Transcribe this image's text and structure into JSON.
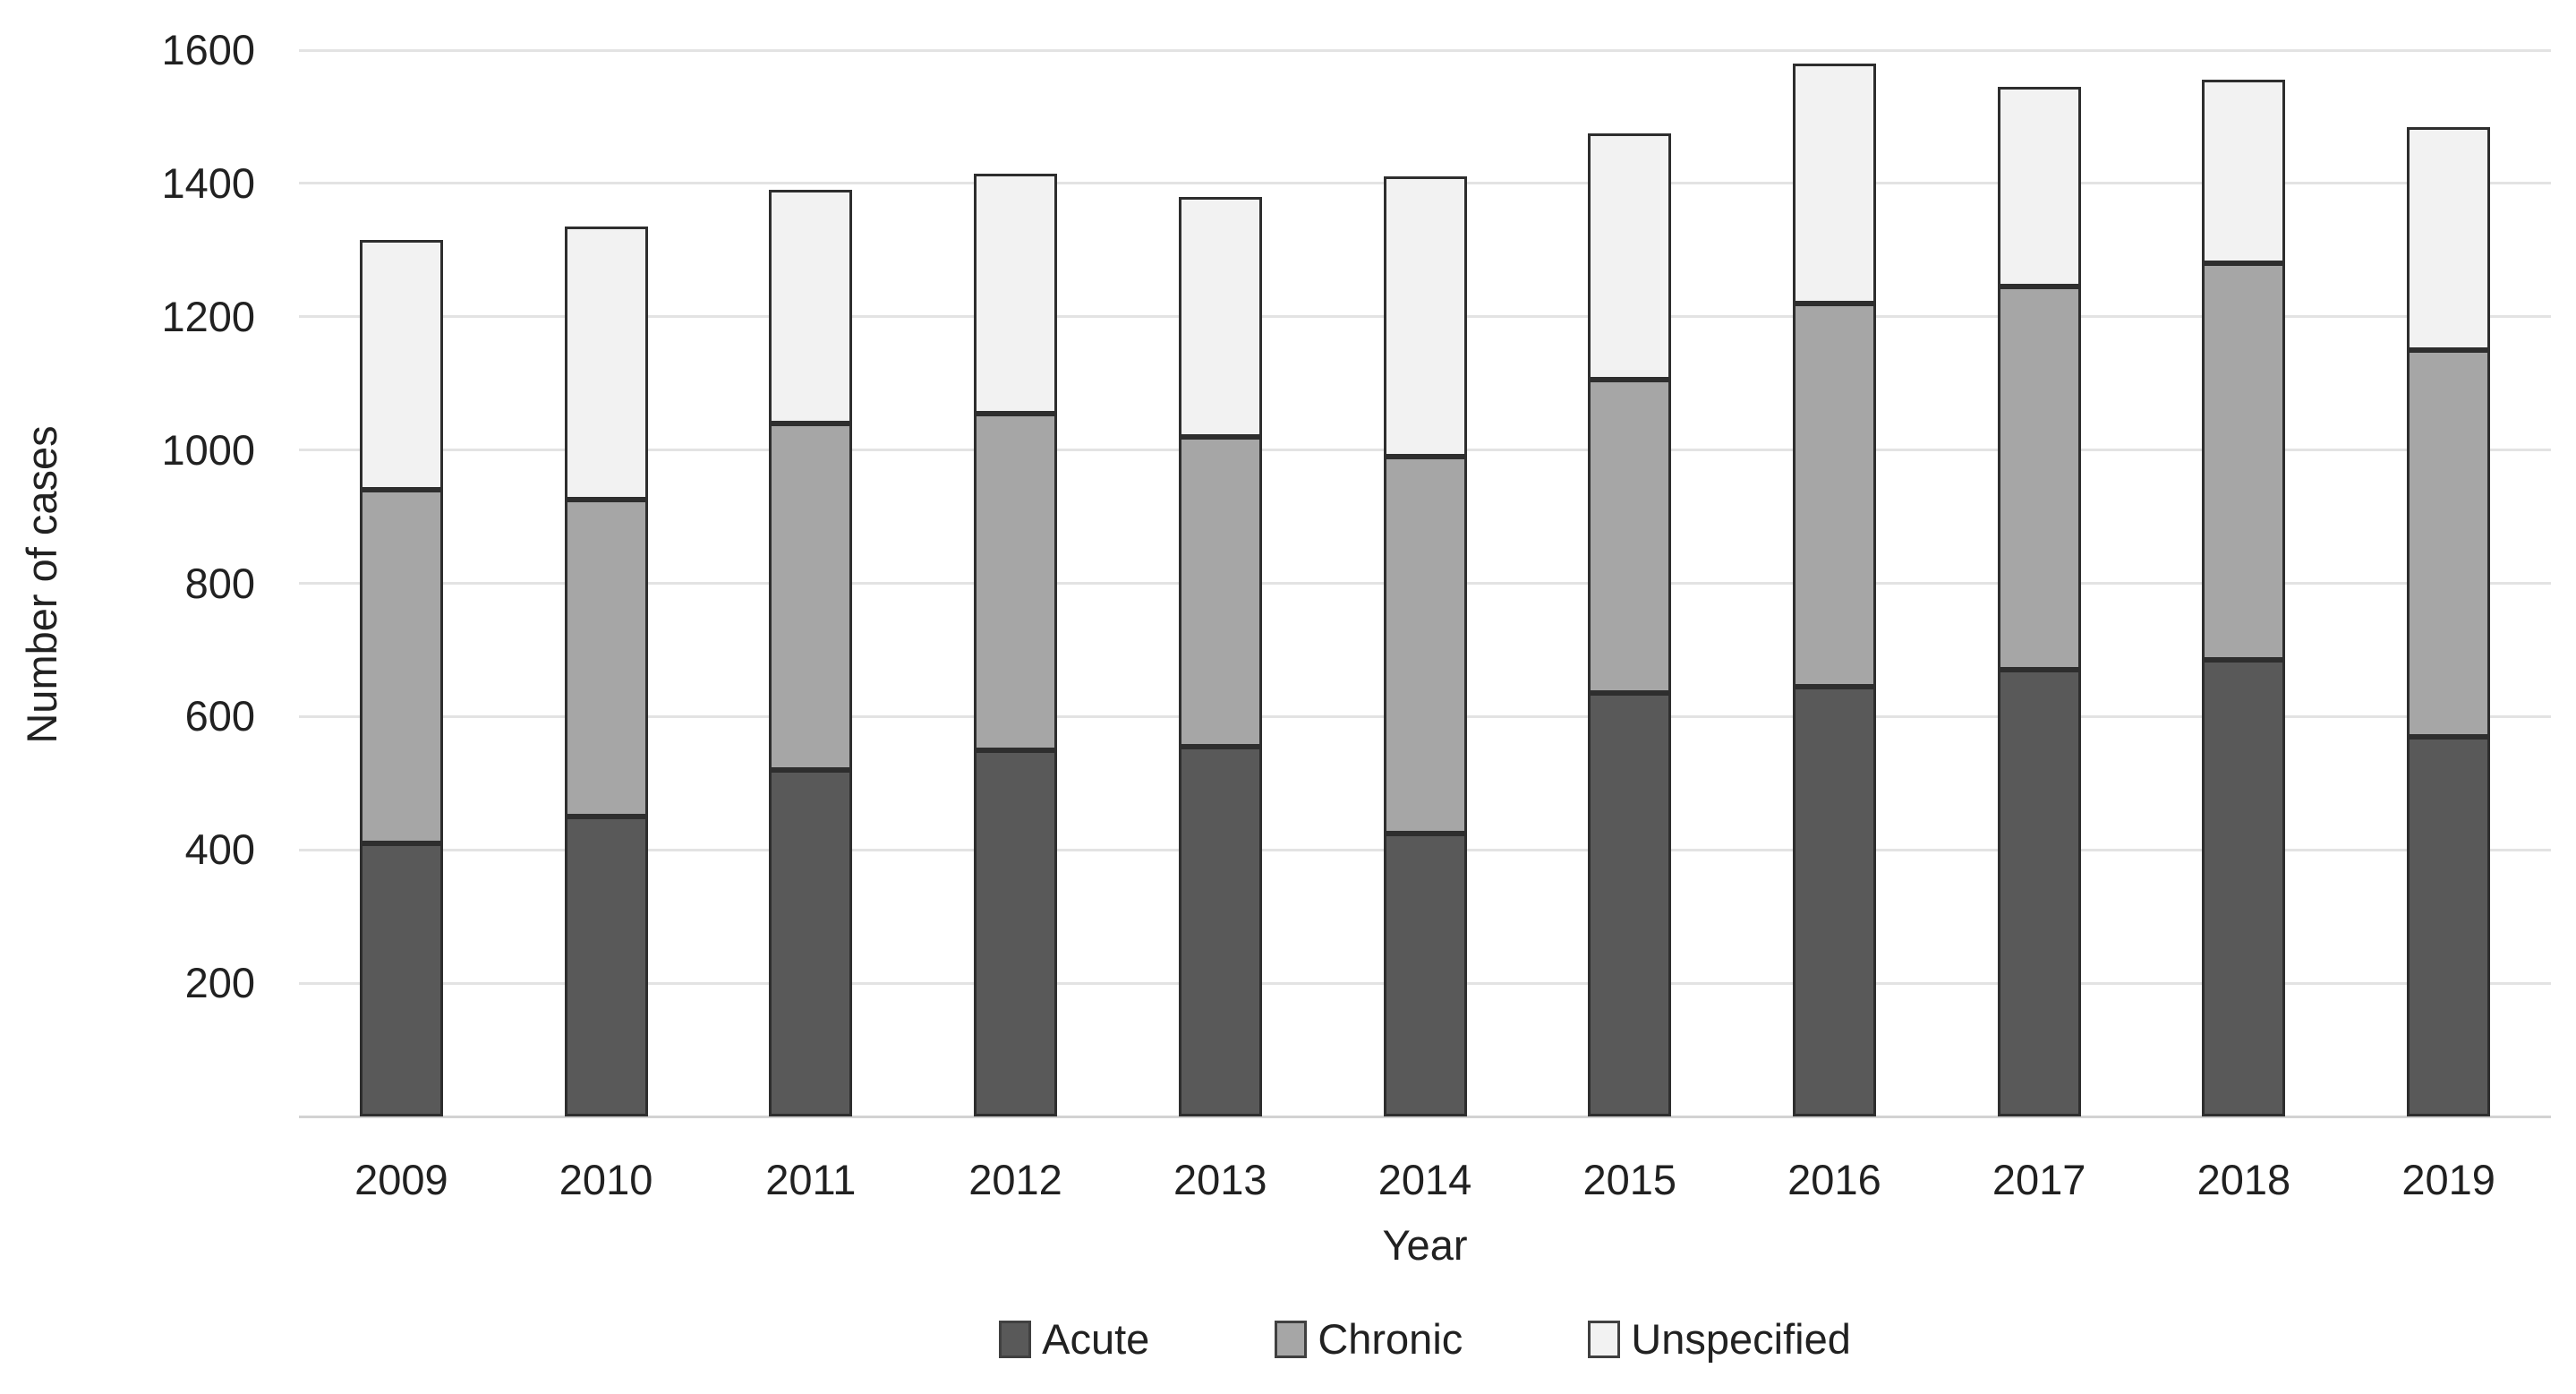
{
  "chart_data": {
    "type": "bar",
    "stacked": true,
    "categories": [
      "2009",
      "2010",
      "2011",
      "2012",
      "2013",
      "2014",
      "2015",
      "2016",
      "2017",
      "2018",
      "2019"
    ],
    "series": [
      {
        "name": "Acute",
        "color": "#595959",
        "values": [
          410,
          450,
          520,
          550,
          555,
          425,
          635,
          645,
          670,
          685,
          570
        ]
      },
      {
        "name": "Chronic",
        "color": "#a6a6a6",
        "values": [
          530,
          475,
          520,
          505,
          465,
          565,
          470,
          575,
          575,
          595,
          580
        ]
      },
      {
        "name": "Unspecified",
        "color": "#f2f2f2",
        "values": [
          375,
          410,
          350,
          360,
          360,
          420,
          370,
          360,
          300,
          275,
          335
        ]
      }
    ],
    "xlabel": "Year",
    "ylabel": "Number of cases",
    "ylim": [
      0,
      1600
    ],
    "ytick_step": 200,
    "ytick_labels": [
      "200",
      "400",
      "600",
      "800",
      "1000",
      "1200",
      "1400",
      "1600"
    ],
    "grid": true,
    "legend_position": "bottom",
    "background_color": "#ffffff",
    "gridline_color": "#e3e3e3",
    "bar_border_color": "#2e2e2e"
  }
}
